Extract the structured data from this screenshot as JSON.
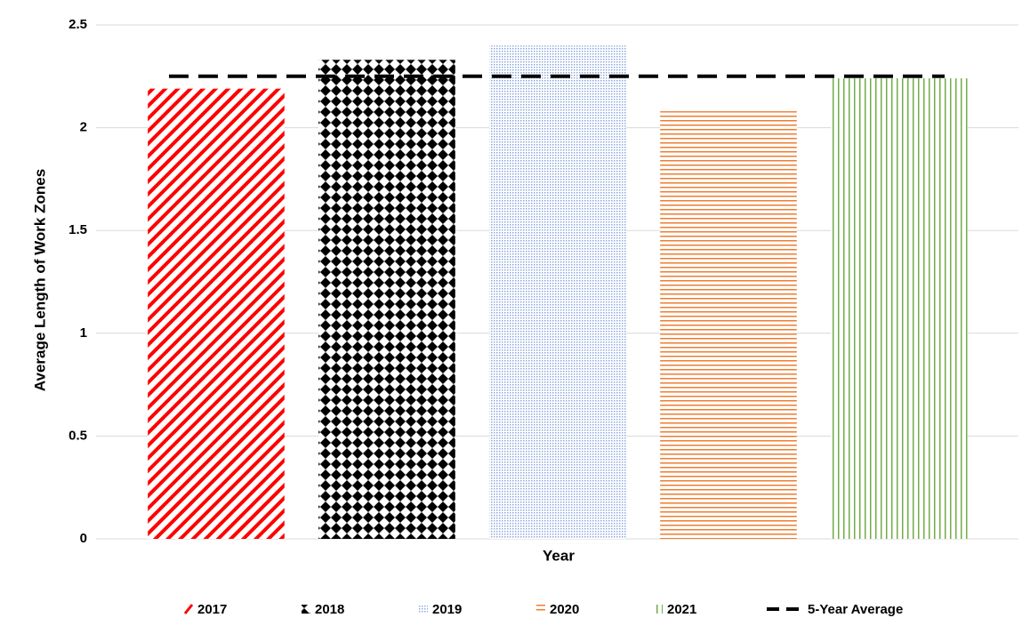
{
  "chart_data": {
    "type": "bar",
    "x_label": "Year",
    "y_label": "Average Length of Work Zones",
    "categories": [
      null
    ],
    "series": [
      {
        "name": "2017",
        "color": "#ff0000",
        "pattern": "diagonal",
        "values": [
          2.19
        ]
      },
      {
        "name": "2018",
        "color": "#000000",
        "pattern": "diamond",
        "values": [
          2.33
        ]
      },
      {
        "name": "2019",
        "color": "#8faadc",
        "pattern": "dots",
        "values": [
          2.4
        ]
      },
      {
        "name": "2020",
        "color": "#ed7d31",
        "pattern": "horizontal",
        "values": [
          2.08
        ]
      },
      {
        "name": "2021",
        "color": "#70ad47",
        "pattern": "vertical",
        "values": [
          2.24
        ]
      }
    ],
    "reference_line": {
      "name": "5-Year Average",
      "color": "#000000",
      "value": 2.25
    },
    "ylim": [
      0,
      2.5
    ],
    "yticks": [
      0,
      0.5,
      1,
      1.5,
      2,
      2.5
    ],
    "grid": true,
    "legend": "bottom"
  }
}
